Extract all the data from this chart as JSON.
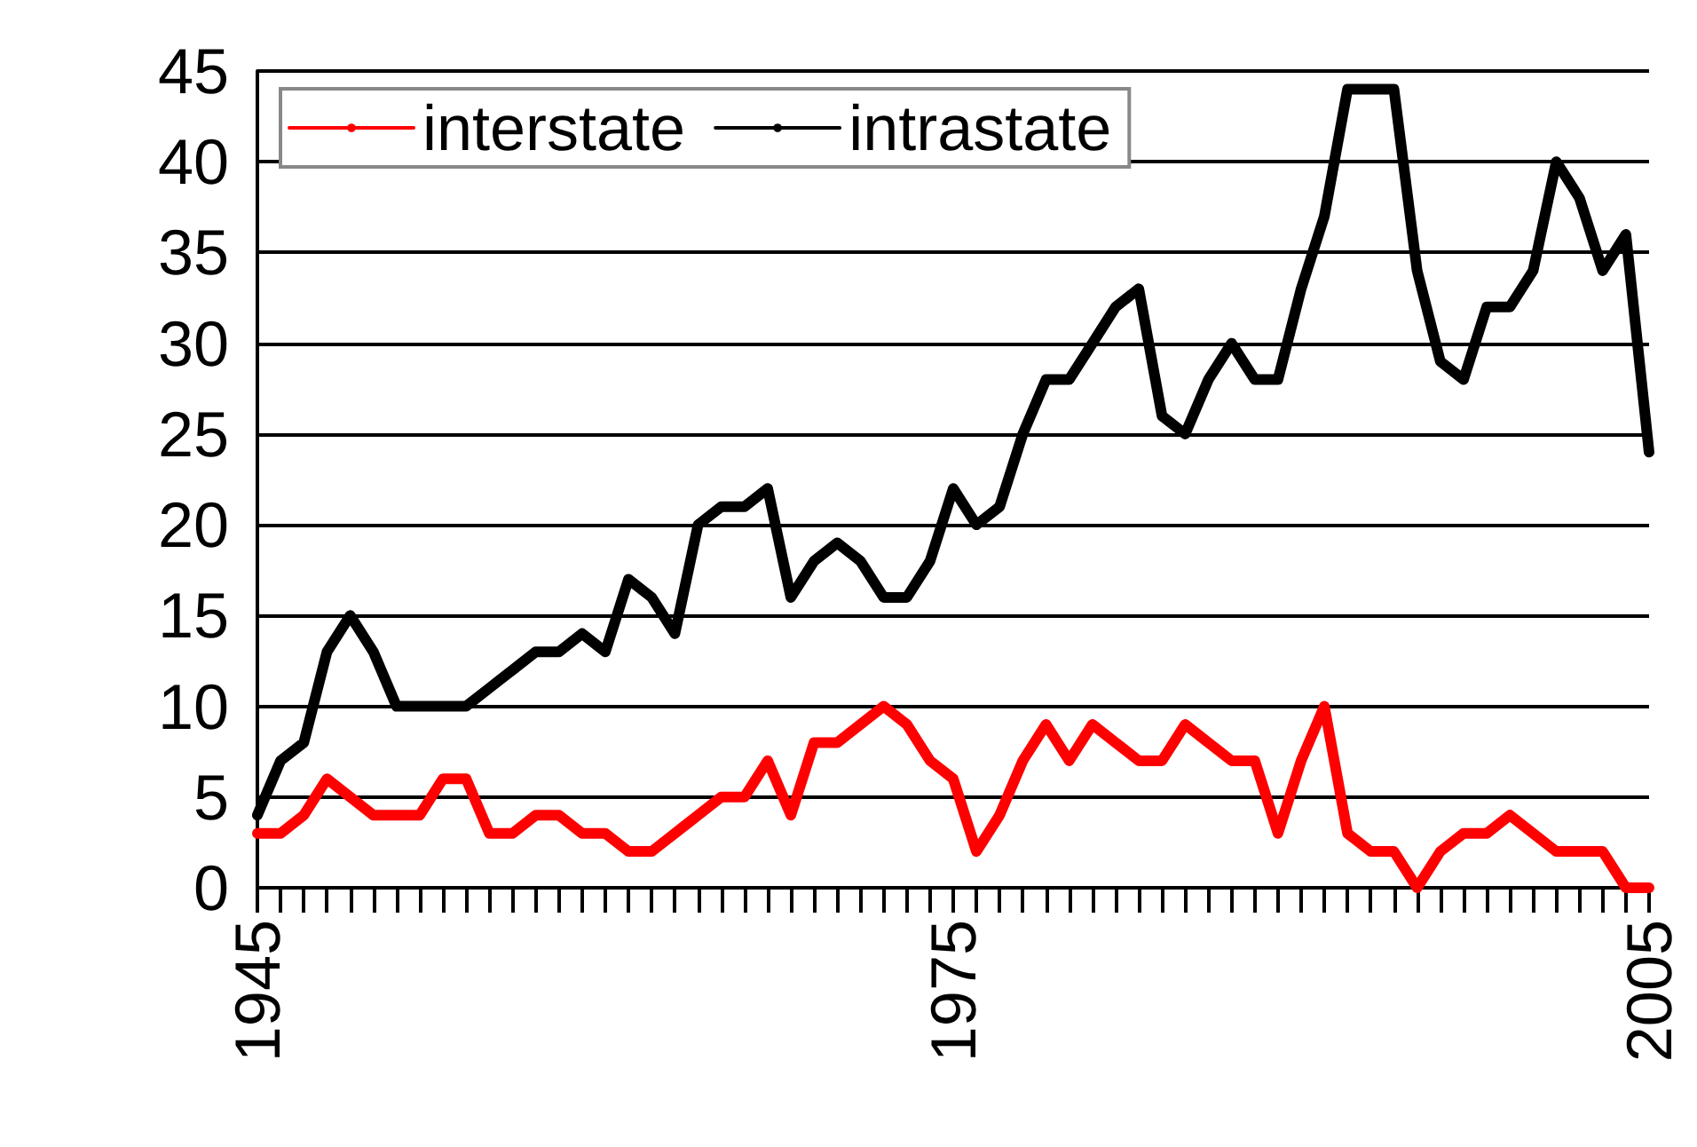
{
  "chart_data": {
    "type": "line",
    "x": [
      1945,
      1946,
      1947,
      1948,
      1949,
      1950,
      1951,
      1952,
      1953,
      1954,
      1955,
      1956,
      1957,
      1958,
      1959,
      1960,
      1961,
      1962,
      1963,
      1964,
      1965,
      1966,
      1967,
      1968,
      1969,
      1970,
      1971,
      1972,
      1973,
      1974,
      1975,
      1976,
      1977,
      1978,
      1979,
      1980,
      1981,
      1982,
      1983,
      1984,
      1985,
      1986,
      1987,
      1988,
      1989,
      1990,
      1991,
      1992,
      1993,
      1994,
      1995,
      1996,
      1997,
      1998,
      1999,
      2000,
      2001,
      2002,
      2003,
      2004,
      2005
    ],
    "series": [
      {
        "name": "interstate",
        "color": "#ff0000",
        "values": [
          3,
          3,
          4,
          6,
          5,
          4,
          4,
          4,
          6,
          6,
          3,
          3,
          4,
          4,
          3,
          3,
          2,
          2,
          3,
          4,
          5,
          5,
          7,
          4,
          8,
          8,
          9,
          10,
          9,
          7,
          6,
          2,
          4,
          7,
          9,
          7,
          9,
          8,
          7,
          7,
          9,
          8,
          7,
          7,
          3,
          7,
          10,
          3,
          2,
          2,
          0,
          2,
          3,
          3,
          4,
          3,
          2,
          2,
          2,
          0,
          0
        ]
      },
      {
        "name": "intrastate",
        "color": "#000000",
        "values": [
          4,
          7,
          8,
          13,
          15,
          13,
          10,
          10,
          10,
          10,
          11,
          12,
          13,
          13,
          14,
          13,
          17,
          16,
          14,
          20,
          21,
          21,
          22,
          16,
          18,
          19,
          18,
          16,
          16,
          18,
          22,
          20,
          21,
          25,
          28,
          28,
          30,
          32,
          33,
          26,
          25,
          28,
          30,
          28,
          28,
          33,
          37,
          44,
          44,
          44,
          34,
          29,
          28,
          32,
          32,
          34,
          40,
          38,
          34,
          36,
          24
        ]
      }
    ],
    "xlim": [
      1945,
      2005
    ],
    "xticks": [
      1945,
      {
        "value": 1946,
        "label": null
      },
      {
        "value": 1947,
        "label": null
      },
      {
        "value": 1948,
        "label": null
      },
      {
        "value": 1949,
        "label": null
      },
      {
        "value": 1950,
        "label": null
      },
      {
        "value": 1951,
        "label": null
      },
      {
        "value": 1952,
        "label": null
      },
      {
        "value": 1953,
        "label": null
      },
      {
        "value": 1954,
        "label": null
      },
      {
        "value": 1955,
        "label": null
      },
      {
        "value": 1956,
        "label": null
      },
      {
        "value": 1957,
        "label": null
      },
      {
        "value": 1958,
        "label": null
      },
      {
        "value": 1959,
        "label": null
      },
      {
        "value": 1960,
        "label": null
      },
      {
        "value": 1961,
        "label": null
      },
      {
        "value": 1962,
        "label": null
      },
      {
        "value": 1963,
        "label": null
      },
      {
        "value": 1964,
        "label": null
      },
      {
        "value": 1965,
        "label": null
      },
      {
        "value": 1966,
        "label": null
      },
      {
        "value": 1967,
        "label": null
      },
      {
        "value": 1968,
        "label": null
      },
      {
        "value": 1969,
        "label": null
      },
      {
        "value": 1970,
        "label": null
      },
      {
        "value": 1971,
        "label": null
      },
      {
        "value": 1972,
        "label": null
      },
      {
        "value": 1973,
        "label": null
      },
      {
        "value": 1974,
        "label": null
      },
      1975,
      {
        "value": 1976,
        "label": null
      },
      {
        "value": 1977,
        "label": null
      },
      {
        "value": 1978,
        "label": null
      },
      {
        "value": 1979,
        "label": null
      },
      {
        "value": 1980,
        "label": null
      },
      {
        "value": 1981,
        "label": null
      },
      {
        "value": 1982,
        "label": null
      },
      {
        "value": 1983,
        "label": null
      },
      {
        "value": 1984,
        "label": null
      },
      {
        "value": 1985,
        "label": null
      },
      {
        "value": 1986,
        "label": null
      },
      {
        "value": 1987,
        "label": null
      },
      {
        "value": 1988,
        "label": null
      },
      {
        "value": 1989,
        "label": null
      },
      {
        "value": 1990,
        "label": null
      },
      {
        "value": 1991,
        "label": null
      },
      {
        "value": 1992,
        "label": null
      },
      {
        "value": 1993,
        "label": null
      },
      {
        "value": 1994,
        "label": null
      },
      {
        "value": 1995,
        "label": null
      },
      {
        "value": 1996,
        "label": null
      },
      {
        "value": 1997,
        "label": null
      },
      {
        "value": 1998,
        "label": null
      },
      {
        "value": 1999,
        "label": null
      },
      {
        "value": 2000,
        "label": null
      },
      {
        "value": 2001,
        "label": null
      },
      {
        "value": 2002,
        "label": null
      },
      {
        "value": 2003,
        "label": null
      },
      {
        "value": 2004,
        "label": null
      },
      2005
    ],
    "ylim": [
      0,
      45
    ],
    "yticks": [
      0,
      5,
      10,
      15,
      20,
      25,
      30,
      35,
      40,
      45
    ],
    "grid": "y",
    "legend": "top left",
    "marker": "none",
    "line_style": "solid"
  }
}
